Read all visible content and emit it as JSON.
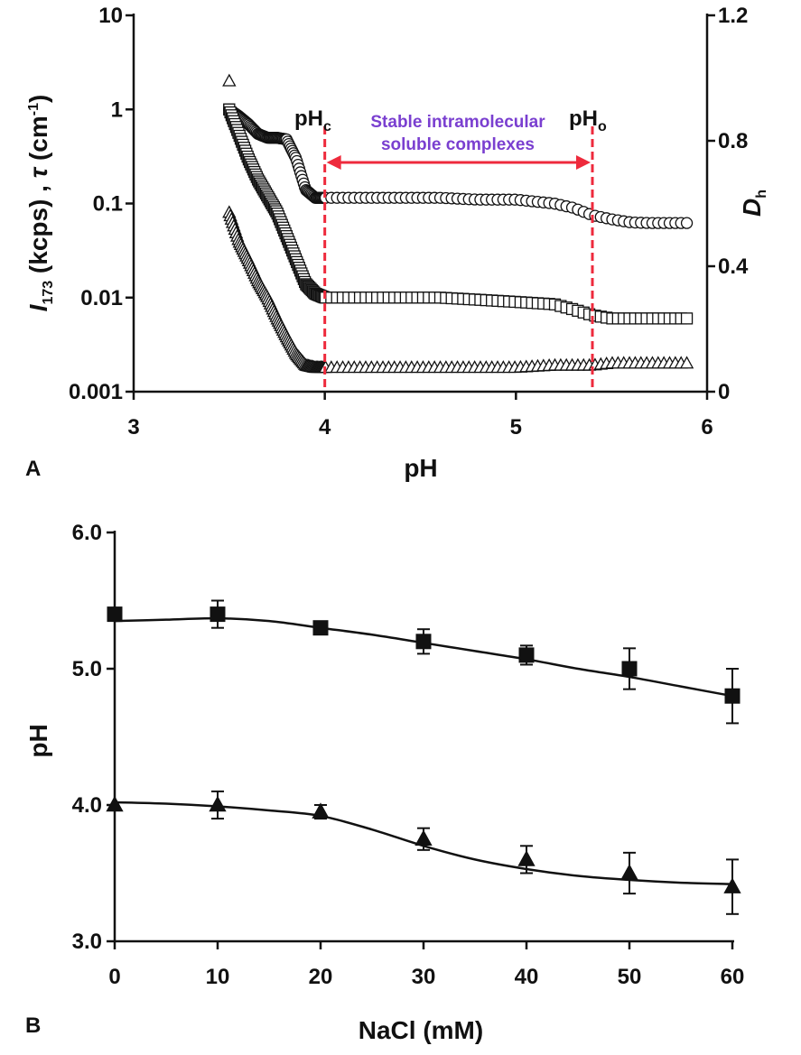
{
  "chart_data": [
    {
      "panel": "A",
      "type": "scatter",
      "xlabel": "pH",
      "ylabel_left_parts": [
        "I",
        "173",
        " (kcps) , ",
        "τ",
        " (cm",
        "-1",
        ")"
      ],
      "ylabel_right_parts": [
        "D",
        "h"
      ],
      "xlim": [
        3,
        6
      ],
      "x_ticks": [
        "3",
        "4",
        "5",
        "6"
      ],
      "ylim_left": [
        0.001,
        10
      ],
      "y_scale_left": "log",
      "y_ticks_left": [
        "0.001",
        "0.01",
        "0.1",
        "1",
        "10"
      ],
      "ylim_right": [
        0,
        1.2
      ],
      "y_ticks_right": [
        "0",
        "0.4",
        "0.8",
        "1.2"
      ],
      "annotations": {
        "phc_main": "pH",
        "phc_sub": "c",
        "pho_main": "pH",
        "pho_sub": "o",
        "region_line1": "Stable intramolecular",
        "region_line2": "soluble complexes",
        "phc_x": 4.0,
        "pho_x": 5.4,
        "color_lines": "#ee2a3c",
        "color_text": "#7a3fd0"
      },
      "series": [
        {
          "marker": "circle",
          "axis": "left",
          "points": [
            [
              3.5,
              1.0
            ],
            [
              3.55,
              0.85
            ],
            [
              3.6,
              0.7
            ],
            [
              3.65,
              0.55
            ],
            [
              3.7,
              0.5
            ],
            [
              3.75,
              0.5
            ],
            [
              3.8,
              0.48
            ],
            [
              3.85,
              0.3
            ],
            [
              3.9,
              0.14
            ],
            [
              3.95,
              0.115
            ],
            [
              4.0,
              0.115
            ],
            [
              4.2,
              0.115
            ],
            [
              4.4,
              0.115
            ],
            [
              4.6,
              0.115
            ],
            [
              4.8,
              0.11
            ],
            [
              5.0,
              0.11
            ],
            [
              5.2,
              0.1
            ],
            [
              5.3,
              0.09
            ],
            [
              5.4,
              0.075
            ],
            [
              5.5,
              0.068
            ],
            [
              5.6,
              0.063
            ],
            [
              5.7,
              0.062
            ],
            [
              5.8,
              0.062
            ],
            [
              5.9,
              0.062
            ]
          ]
        },
        {
          "marker": "square",
          "axis": "left",
          "points": [
            [
              3.5,
              1.0
            ],
            [
              3.55,
              0.55
            ],
            [
              3.6,
              0.3
            ],
            [
              3.65,
              0.18
            ],
            [
              3.7,
              0.12
            ],
            [
              3.75,
              0.08
            ],
            [
              3.8,
              0.045
            ],
            [
              3.85,
              0.025
            ],
            [
              3.9,
              0.014
            ],
            [
              3.95,
              0.011
            ],
            [
              4.0,
              0.01
            ],
            [
              4.2,
              0.01
            ],
            [
              4.4,
              0.01
            ],
            [
              4.6,
              0.01
            ],
            [
              4.8,
              0.0095
            ],
            [
              5.0,
              0.009
            ],
            [
              5.2,
              0.0085
            ],
            [
              5.3,
              0.0075
            ],
            [
              5.4,
              0.0065
            ],
            [
              5.5,
              0.006
            ],
            [
              5.6,
              0.006
            ],
            [
              5.7,
              0.006
            ],
            [
              5.8,
              0.006
            ],
            [
              5.9,
              0.006
            ]
          ]
        },
        {
          "marker": "triangle",
          "axis": "left",
          "points": [
            [
              3.5,
              2.0
            ],
            [
              3.5,
              0.08
            ],
            [
              3.55,
              0.04
            ],
            [
              3.6,
              0.025
            ],
            [
              3.65,
              0.015
            ],
            [
              3.7,
              0.01
            ],
            [
              3.75,
              0.006
            ],
            [
              3.8,
              0.0038
            ],
            [
              3.85,
              0.0025
            ],
            [
              3.9,
              0.0019
            ],
            [
              3.95,
              0.0018
            ],
            [
              4.0,
              0.0018
            ],
            [
              4.2,
              0.0018
            ],
            [
              4.4,
              0.0018
            ],
            [
              4.6,
              0.0018
            ],
            [
              4.8,
              0.0018
            ],
            [
              5.0,
              0.0018
            ],
            [
              5.2,
              0.0019
            ],
            [
              5.4,
              0.0019
            ],
            [
              5.5,
              0.002
            ],
            [
              5.6,
              0.002
            ],
            [
              5.7,
              0.002
            ],
            [
              5.8,
              0.002
            ],
            [
              5.9,
              0.002
            ]
          ]
        }
      ]
    },
    {
      "panel": "B",
      "type": "line",
      "xlabel": "NaCl (mM)",
      "ylabel": "pH",
      "xlim": [
        0,
        60
      ],
      "x_ticks": [
        "0",
        "10",
        "20",
        "30",
        "40",
        "50",
        "60"
      ],
      "ylim": [
        3.0,
        6.0
      ],
      "y_ticks": [
        "3.0",
        "4.0",
        "5.0",
        "6.0"
      ],
      "x": [
        0,
        10,
        20,
        30,
        40,
        50,
        60
      ],
      "series": [
        {
          "marker": "square",
          "values": [
            5.4,
            5.4,
            5.3,
            5.2,
            5.1,
            5.0,
            4.8
          ],
          "errors": [
            0.0,
            0.1,
            0.02,
            0.09,
            0.07,
            0.15,
            0.2
          ],
          "curve": [
            [
              0,
              5.35
            ],
            [
              5,
              5.36
            ],
            [
              10,
              5.37
            ],
            [
              15,
              5.35
            ],
            [
              20,
              5.3
            ],
            [
              25,
              5.25
            ],
            [
              30,
              5.19
            ],
            [
              35,
              5.13
            ],
            [
              40,
              5.07
            ],
            [
              45,
              5.0
            ],
            [
              50,
              4.94
            ],
            [
              55,
              4.87
            ],
            [
              60,
              4.8
            ]
          ]
        },
        {
          "marker": "triangle",
          "values": [
            4.0,
            4.0,
            3.95,
            3.75,
            3.6,
            3.5,
            3.4
          ],
          "errors": [
            0.0,
            0.1,
            0.05,
            0.08,
            0.1,
            0.15,
            0.2
          ],
          "curve": [
            [
              0,
              4.02
            ],
            [
              5,
              4.01
            ],
            [
              10,
              3.99
            ],
            [
              15,
              3.96
            ],
            [
              20,
              3.92
            ],
            [
              25,
              3.82
            ],
            [
              30,
              3.7
            ],
            [
              35,
              3.6
            ],
            [
              40,
              3.53
            ],
            [
              45,
              3.48
            ],
            [
              50,
              3.45
            ],
            [
              55,
              3.43
            ],
            [
              60,
              3.42
            ]
          ]
        }
      ]
    }
  ]
}
